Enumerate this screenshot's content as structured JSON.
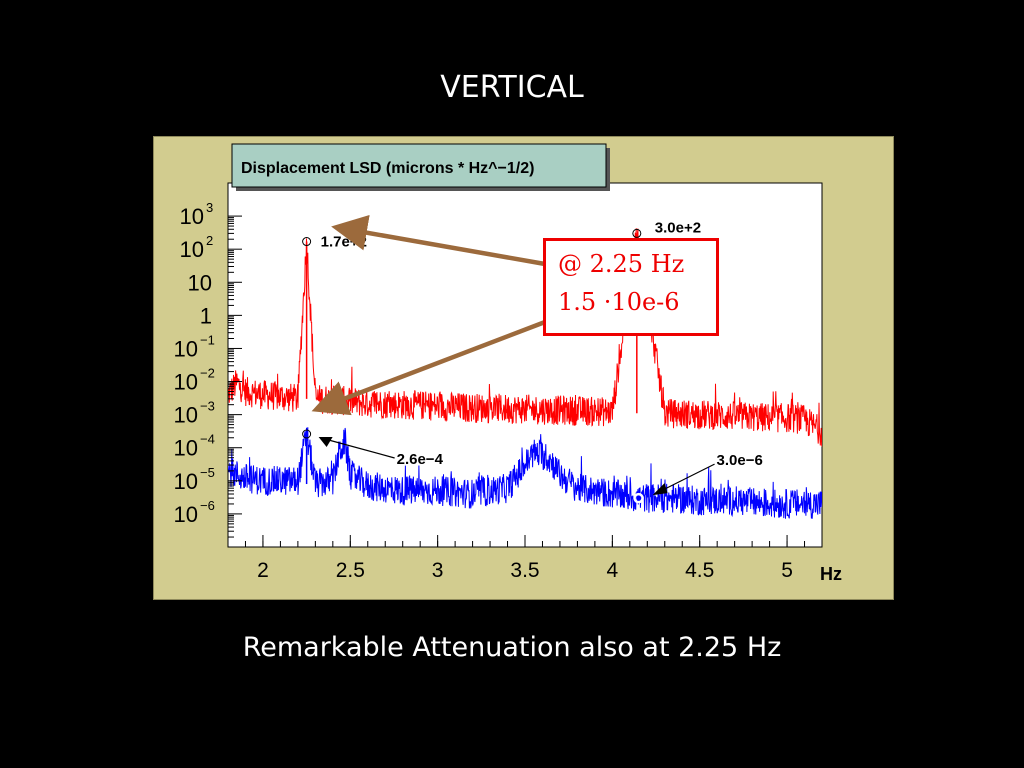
{
  "slide": {
    "title": "VERTICAL",
    "caption": "Remarkable Attenuation also at 2.25 Hz"
  },
  "annotation": {
    "line1": "@ 2.25 Hz",
    "line2": "1.5 ·10e-6",
    "color": "#ee0000"
  },
  "chart_data": {
    "type": "line",
    "title": "Displacement LSD (microns * Hz^−1/2)",
    "xlabel": "Hz",
    "ylabel": "",
    "log_y": true,
    "xlim": [
      1.8,
      5.2
    ],
    "ylim": [
      1e-07,
      10000.0
    ],
    "xticks": [
      2,
      2.5,
      3,
      3.5,
      4,
      4.5,
      5
    ],
    "xtick_labels": [
      "2",
      "2.5",
      "3",
      "3.5",
      "4",
      "4.5",
      "5"
    ],
    "yticks": [
      {
        "base": "10",
        "exp": "3",
        "value": 1000
      },
      {
        "base": "10",
        "exp": "2",
        "value": 100
      },
      {
        "base": "10",
        "exp": "",
        "value": 10
      },
      {
        "base": "1",
        "exp": "",
        "value": 1
      },
      {
        "base": "10",
        "exp": "−1",
        "value": 0.1
      },
      {
        "base": "10",
        "exp": "−2",
        "value": 0.01
      },
      {
        "base": "10",
        "exp": "−3",
        "value": 0.001
      },
      {
        "base": "10",
        "exp": "−4",
        "value": 0.0001
      },
      {
        "base": "10",
        "exp": "−5",
        "value": 1e-05
      },
      {
        "base": "10",
        "exp": "−6",
        "value": 1e-06
      }
    ],
    "series": [
      {
        "color": "#ff0000",
        "x": [
          1.8,
          1.85,
          1.9,
          2.0,
          2.1,
          2.2,
          2.25,
          2.3,
          2.4,
          2.5,
          2.6,
          2.8,
          3.0,
          3.2,
          3.4,
          3.6,
          3.8,
          4.0,
          4.14,
          4.3,
          4.5,
          4.7,
          4.9,
          5.0,
          5.1,
          5.2
        ],
        "y": [
          0.004,
          0.009,
          0.005,
          0.004,
          0.0035,
          0.003,
          170,
          0.003,
          0.0028,
          0.0025,
          0.0022,
          0.002,
          0.0018,
          0.0016,
          0.0015,
          0.0014,
          0.0013,
          0.0012,
          300,
          0.0011,
          0.001,
          0.0009,
          0.0008,
          0.0008,
          0.0007,
          0.0003
        ]
      },
      {
        "color": "#0000ff",
        "x": [
          1.8,
          1.9,
          2.0,
          2.1,
          2.2,
          2.25,
          2.3,
          2.4,
          2.44,
          2.47,
          2.5,
          2.6,
          2.8,
          3.0,
          3.2,
          3.4,
          3.5,
          3.55,
          3.6,
          3.65,
          3.7,
          3.8,
          4.0,
          4.15,
          4.3,
          4.5,
          4.7,
          4.9,
          5.1,
          5.2
        ],
        "y": [
          2e-05,
          1.2e-05,
          1e-05,
          1e-05,
          1e-05,
          0.00026,
          8e-06,
          1e-05,
          8e-05,
          0.00015,
          1.5e-05,
          7e-06,
          5e-06,
          5e-06,
          4e-06,
          6e-06,
          3e-05,
          7e-05,
          6e-05,
          4e-05,
          1.5e-05,
          6e-06,
          4e-06,
          3e-06,
          3e-06,
          2.5e-06,
          2.5e-06,
          2e-06,
          2e-06,
          2e-06
        ]
      }
    ],
    "annotations": [
      {
        "text": "1.7e+2",
        "x": 2.25,
        "y": 170
      },
      {
        "text": "3.0e+2",
        "x": 4.14,
        "y": 300
      },
      {
        "text": "2.6e−4",
        "x": 2.25,
        "y": 0.00026
      },
      {
        "text": "3.0e−6",
        "x": 4.15,
        "y": 3e-06
      }
    ]
  },
  "colors": {
    "frame": "#d2cc8f",
    "title_box": "#a9cfc3",
    "arrow": "#9c6a3c"
  }
}
